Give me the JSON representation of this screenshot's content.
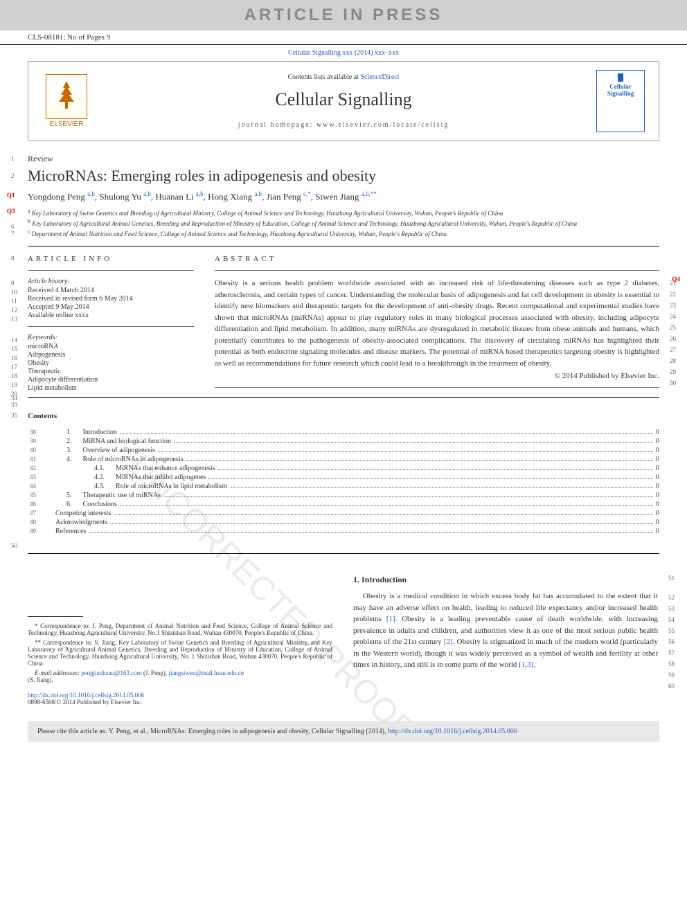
{
  "banner": "ARTICLE IN PRESS",
  "article_id": "CLS-08181; No of Pages 9",
  "journal_ref": "Cellular Signalling xxx (2014) xxx–xxx",
  "contents_line_pre": "Contents lists available at ",
  "contents_line_link": "ScienceDirect",
  "journal_name": "Cellular Signalling",
  "homepage": "journal homepage: www.elsevier.com/locate/cellsig",
  "elsevier": "ELSEVIER",
  "cover_line1": "Cellular",
  "cover_line2": "Signalling",
  "review_label": "Review",
  "title": "MicroRNAs: Emerging roles in adipogenesis and obesity",
  "authors": [
    {
      "name": "Yongdong Peng ",
      "sup": "a,b"
    },
    {
      "name": ", Shulong Yu ",
      "sup": "a,b"
    },
    {
      "name": ", Huanan Li ",
      "sup": "a,b"
    },
    {
      "name": ", Hong Xiang ",
      "sup": "a,b"
    },
    {
      "name": ", Jian Peng ",
      "sup": "c,",
      "star": "*"
    },
    {
      "name": ", Siwen Jiang ",
      "sup": "a,b,",
      "star": "**"
    }
  ],
  "affiliations": {
    "a": "Key Laboratory of Swine Genetics and Breeding of Agricultural Ministry, College of Animal Science and Technology, Huazhong Agricultural University, Wuhan, People's Republic of China",
    "b": "Key Laboratory of Agricultural Animal Genetics, Breeding and Reproduction of Ministry of Education, College of Animal Science and Technology, Huazhong Agricultural University, Wuhan, People's Republic of China",
    "c": "Department of Animal Nutrition and Feed Science, College of Animal Science and Technology, Huazhong Agricultural University, Wuhan, People's Republic of China"
  },
  "article_info_head": "ARTICLE INFO",
  "history_head": "Article history:",
  "history_lines": [
    "Received 4 March 2014",
    "Received in revised form 6 May 2014",
    "Accepted 9 May 2014",
    "Available online xxxx"
  ],
  "keywords_head": "Keywords:",
  "keywords": [
    "microRNA",
    "Adipogenesis",
    "Obesity",
    "Therapeutic",
    "Adipocyte differentiation",
    "Lipid metabolism"
  ],
  "abstract_head": "ABSTRACT",
  "abstract_text": "Obesity is a serious health problem worldwide associated with an increased risk of life-threatening diseases such as type 2 diabetes, atherosclerosis, and certain types of cancer. Understanding the molecular basis of adipogenesis and fat cell development in obesity is essential to identify new biomarkers and therapeutic targets for the development of anti-obesity drugs. Recent computational and experimental studies have shown that microRNAs (miRNAs) appear to play regulatory roles in many biological processes associated with obesity, including adipocyte differentiation and lipid metabolism. In addition, many miRNAs are dysregulated in metabolic tissues from obese animals and humans, which potentially contributes to the pathogenesis of obesity-associated complications. The discovery of circulating miRNAs has highlighted their potential as both endocrine signaling molecules and disease markers. The potential of miRNA based therapeutics targeting obesity is highlighted as well as recommendations for future research which could lead to a breakthrough in the treatment of obesity.",
  "copyright": "© 2014 Published by Elsevier Inc.",
  "abstract_line_nums": [
    "21",
    "22",
    "23",
    "24",
    "25",
    "26",
    "27",
    "28",
    "29",
    "30"
  ],
  "contents_head": "Contents",
  "toc": [
    {
      "ln": "38",
      "num": "1.",
      "indent": 0,
      "title": "Introduction",
      "page": "0"
    },
    {
      "ln": "39",
      "num": "2.",
      "indent": 0,
      "title": "MiRNA and biological function",
      "page": "0"
    },
    {
      "ln": "40",
      "num": "3.",
      "indent": 0,
      "title": "Overview of adipogenesis",
      "page": "0"
    },
    {
      "ln": "41",
      "num": "4.",
      "indent": 0,
      "title": "Role of microRNAs in adipogenesis",
      "page": "0"
    },
    {
      "ln": "42",
      "num": "4.1.",
      "indent": 1,
      "title": "MiRNAs that enhance adipogenesis",
      "page": "0"
    },
    {
      "ln": "43",
      "num": "4.2.",
      "indent": 1,
      "title": "MiRNAs that inhibit adipogenes",
      "page": "0"
    },
    {
      "ln": "44",
      "num": "4.3.",
      "indent": 1,
      "title": "Role of microRNAs in lipid metabolism",
      "page": "0"
    },
    {
      "ln": "45",
      "num": "5.",
      "indent": 0,
      "title": "Therapeutic use of miRNAs",
      "page": "0"
    },
    {
      "ln": "46",
      "num": "6.",
      "indent": 0,
      "title": "Conclusions",
      "page": "0"
    },
    {
      "ln": "47",
      "num": "",
      "indent": 0,
      "title": "Competing interests",
      "page": "0"
    },
    {
      "ln": "48",
      "num": "",
      "indent": 0,
      "title": "Acknowledgments",
      "page": "0"
    },
    {
      "ln": "49",
      "num": "",
      "indent": 0,
      "title": "References",
      "page": "0"
    }
  ],
  "line_nums": {
    "review": "1",
    "title": "2",
    "authors": "Q1",
    "affil_q": "Q3",
    "affil_b": "6",
    "affil_c": "7",
    "info_head": "8",
    "hist": "9",
    "h1": "10",
    "h2": "11",
    "h3": "12",
    "h4": "13",
    "kw": "14",
    "k1": "15",
    "k2": "16",
    "k3": "17",
    "k4": "18",
    "k5": "19",
    "k6": "20",
    "extra1": "33",
    "extra2": "34",
    "contents": "35",
    "end": "50",
    "intro": "51"
  },
  "corr1": "Correspondence to: J. Peng, Department of Animal Nutrition and Feed Science, College of Animal Science and Technology, Huazhong Agricultural University, No.1 Shizishan Road, Wuhan 430070, People's Republic of China.",
  "corr2": "Correspondence to: S. Jiang, Key Laboratory of Swine Genetics and Breeding of Agricultural Ministry, and Key Laboratory of Agricultural Animal Genetics, Breeding and Reproduction of Ministry of Education, College of Animal Science and Technology, Huazhong Agricultural University, No. 1 Shizishan Road, Wuhan 430070, People's Republic of China.",
  "email_label": "E-mail addresses: ",
  "email1": "pengjianhzau@163.com",
  "email1_name": " (J. Peng), ",
  "email2": "jiangsiwen@mail.hzau.edu.cn",
  "email2_name": "(S. Jiang).",
  "doi": "http://dx.doi.org/10.1016/j.cellsig.2014.05.006",
  "issn": "0898-6568/© 2014 Published by Elsevier Inc.",
  "intro_head": "1. Introduction",
  "intro_text_pre": "Obesity is a medical condition in which excess body fat has accumulated to the extent that it may have an adverse effect on health, leading to reduced life expectancy and/or increased health problems ",
  "intro_ref1": "[1]",
  "intro_text_mid": ". Obesity is a leading preventable cause of death worldwide, with increasing prevalence in adults and children, and authorities view it as one of the most serious public health problems of the 21st century ",
  "intro_ref2": "[2]",
  "intro_text_post": ". Obesity is stigmatized in much of the modern world (particularly in the Western world), though it was widely perceived as a symbol of wealth and fertility at other times in history, and still is in some parts of the world ",
  "intro_ref3": "[1,3]",
  "intro_line_nums": [
    "52",
    "53",
    "54",
    "55",
    "56",
    "57",
    "58",
    "59",
    "60"
  ],
  "cite_pre": "Please cite this article as: Y. Peng, et al., MicroRNAs: Emerging roles in adipogenesis and obesity, Cellular Signalling (2014), ",
  "cite_link": "http://dx.doi.org/10.1016/j.cellsig.2014.05.006",
  "q4": "Q4",
  "watermark": "UNCORRECTED PROOF"
}
